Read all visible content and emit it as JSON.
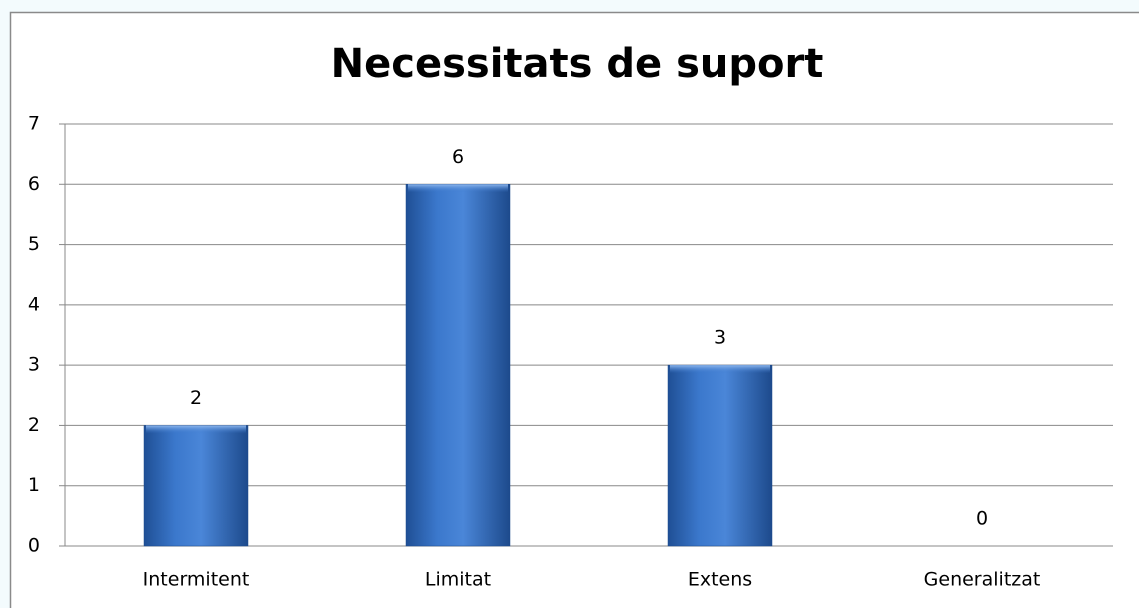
{
  "chart_data": {
    "type": "bar",
    "title": "Necessitats de suport",
    "categories": [
      "Intermitent",
      "Limitat",
      "Extens",
      "Generalitzat"
    ],
    "values": [
      2,
      6,
      3,
      0
    ],
    "color": "#3a74c4",
    "ylim": [
      0,
      7
    ],
    "yticks": [
      0,
      1,
      2,
      3,
      4,
      5,
      6,
      7
    ],
    "grid": true
  }
}
